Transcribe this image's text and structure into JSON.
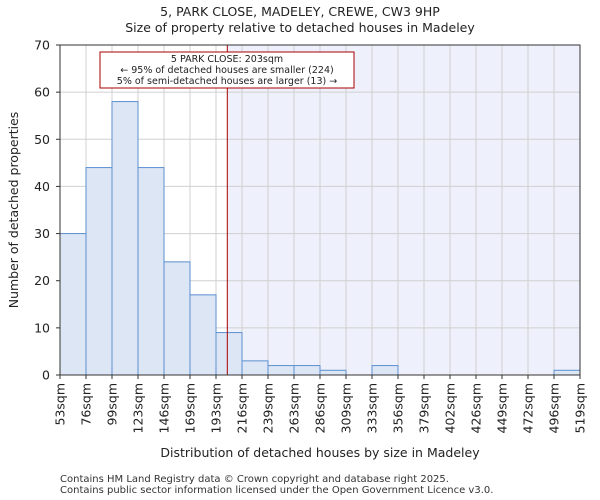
{
  "header": {
    "title_line1": "5, PARK CLOSE, MADELEY, CREWE, CW3 9HP",
    "title_line2": "Size of property relative to detached houses in Madeley"
  },
  "footer": {
    "line1": "Contains HM Land Registry data © Crown copyright and database right 2025.",
    "line2": "Contains public sector information licensed under the Open Government Licence v3.0."
  },
  "chart_data": {
    "type": "bar",
    "title": "Size of property relative to detached houses in Madeley",
    "xlabel": "Distribution of detached houses by size in Madeley",
    "ylabel": "Number of detached properties",
    "ylim": [
      0,
      70
    ],
    "yticks": [
      0,
      10,
      20,
      30,
      40,
      50,
      60,
      70
    ],
    "bin_edges": [
      "53sqm",
      "76sqm",
      "99sqm",
      "123sqm",
      "146sqm",
      "169sqm",
      "193sqm",
      "216sqm",
      "239sqm",
      "263sqm",
      "286sqm",
      "309sqm",
      "333sqm",
      "356sqm",
      "379sqm",
      "402sqm",
      "426sqm",
      "449sqm",
      "472sqm",
      "496sqm",
      "519sqm"
    ],
    "values": [
      30,
      44,
      58,
      44,
      24,
      17,
      9,
      3,
      2,
      2,
      1,
      0,
      2,
      0,
      0,
      0,
      0,
      0,
      0,
      1
    ],
    "grid": true,
    "bar_color": "#dce6f4",
    "bar_edge_color": "#5b8fd0",
    "marker": {
      "value_sqm": 203,
      "color": "#aa0000",
      "shade_color": "#eef1fb"
    },
    "annotation": {
      "line1": "5 PARK CLOSE: 203sqm",
      "line2": "← 95% of detached houses are smaller (224)",
      "line3": "5% of semi-detached houses are larger (13) →"
    }
  }
}
